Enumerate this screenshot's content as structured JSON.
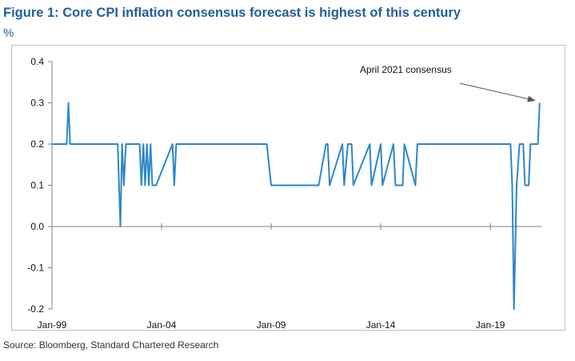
{
  "figure": {
    "title": "Figure 1: Core CPI inflation consensus forecast is highest of this century",
    "unit": "%",
    "source": "Source: Bloomberg, Standard Chartered Research"
  },
  "colors": {
    "line": "#2e86c8",
    "title": "#1f5f9f",
    "axis": "#808080"
  },
  "chart_data": {
    "type": "line",
    "title": "Figure 1: Core CPI inflation consensus forecast is highest of this century",
    "ylabel": "%",
    "xlabel": "",
    "ylim": [
      -0.2,
      0.4
    ],
    "yticks": [
      0.4,
      0.3,
      0.2,
      0.1,
      0.0,
      -0.1,
      -0.2
    ],
    "ytick_labels": [
      "0.4",
      "0.3",
      "0.2",
      "0.1",
      "0.0",
      "-0.1",
      "-0.2"
    ],
    "xlim": [
      1999.0,
      2021.33
    ],
    "xticks": [
      1999.0,
      2004.0,
      2009.0,
      2014.0,
      2019.0
    ],
    "xtick_labels": [
      "Jan-99",
      "Jan-04",
      "Jan-09",
      "Jan-14",
      "Jan-19"
    ],
    "grid": false,
    "legend": "none",
    "annotation": {
      "text": "April 2021 consensus",
      "x": 2021.25,
      "y": 0.3
    },
    "series": [
      {
        "name": "Core CPI consensus forecast",
        "x": [
          1999.0,
          1999.67,
          1999.75,
          1999.83,
          2000.0,
          2001.0,
          2002.0,
          2002.12,
          2002.2,
          2002.28,
          2002.37,
          2002.45,
          2003.0,
          2003.08,
          2003.17,
          2003.25,
          2003.33,
          2003.42,
          2003.5,
          2003.58,
          2003.67,
          2003.75,
          2004.5,
          2004.58,
          2004.67,
          2004.75,
          2005.0,
          2006.0,
          2007.0,
          2008.0,
          2008.8,
          2009.0,
          2010.0,
          2011.0,
          2011.17,
          2011.5,
          2011.58,
          2011.67,
          2012.25,
          2012.33,
          2012.5,
          2012.67,
          2012.75,
          2013.5,
          2013.58,
          2014.0,
          2014.08,
          2014.58,
          2014.67,
          2015.0,
          2015.08,
          2015.58,
          2015.67,
          2016.0,
          2017.0,
          2018.0,
          2019.0,
          2019.92,
          2020.0,
          2020.08,
          2020.2,
          2020.33,
          2020.5,
          2020.58,
          2020.75,
          2020.83,
          2021.0,
          2021.08,
          2021.17,
          2021.25
        ],
        "values": [
          0.2,
          0.2,
          0.3,
          0.2,
          0.2,
          0.2,
          0.2,
          0.0,
          0.2,
          0.1,
          0.2,
          0.2,
          0.2,
          0.1,
          0.2,
          0.1,
          0.2,
          0.1,
          0.2,
          0.1,
          0.1,
          0.1,
          0.2,
          0.1,
          0.2,
          0.2,
          0.2,
          0.2,
          0.2,
          0.2,
          0.2,
          0.1,
          0.1,
          0.1,
          0.1,
          0.2,
          0.2,
          0.1,
          0.2,
          0.1,
          0.2,
          0.2,
          0.1,
          0.2,
          0.1,
          0.2,
          0.1,
          0.2,
          0.1,
          0.1,
          0.2,
          0.1,
          0.2,
          0.2,
          0.2,
          0.2,
          0.2,
          0.2,
          0.1,
          -0.2,
          0.1,
          0.2,
          0.2,
          0.1,
          0.1,
          0.2,
          0.2,
          0.2,
          0.2,
          0.3
        ]
      }
    ]
  }
}
